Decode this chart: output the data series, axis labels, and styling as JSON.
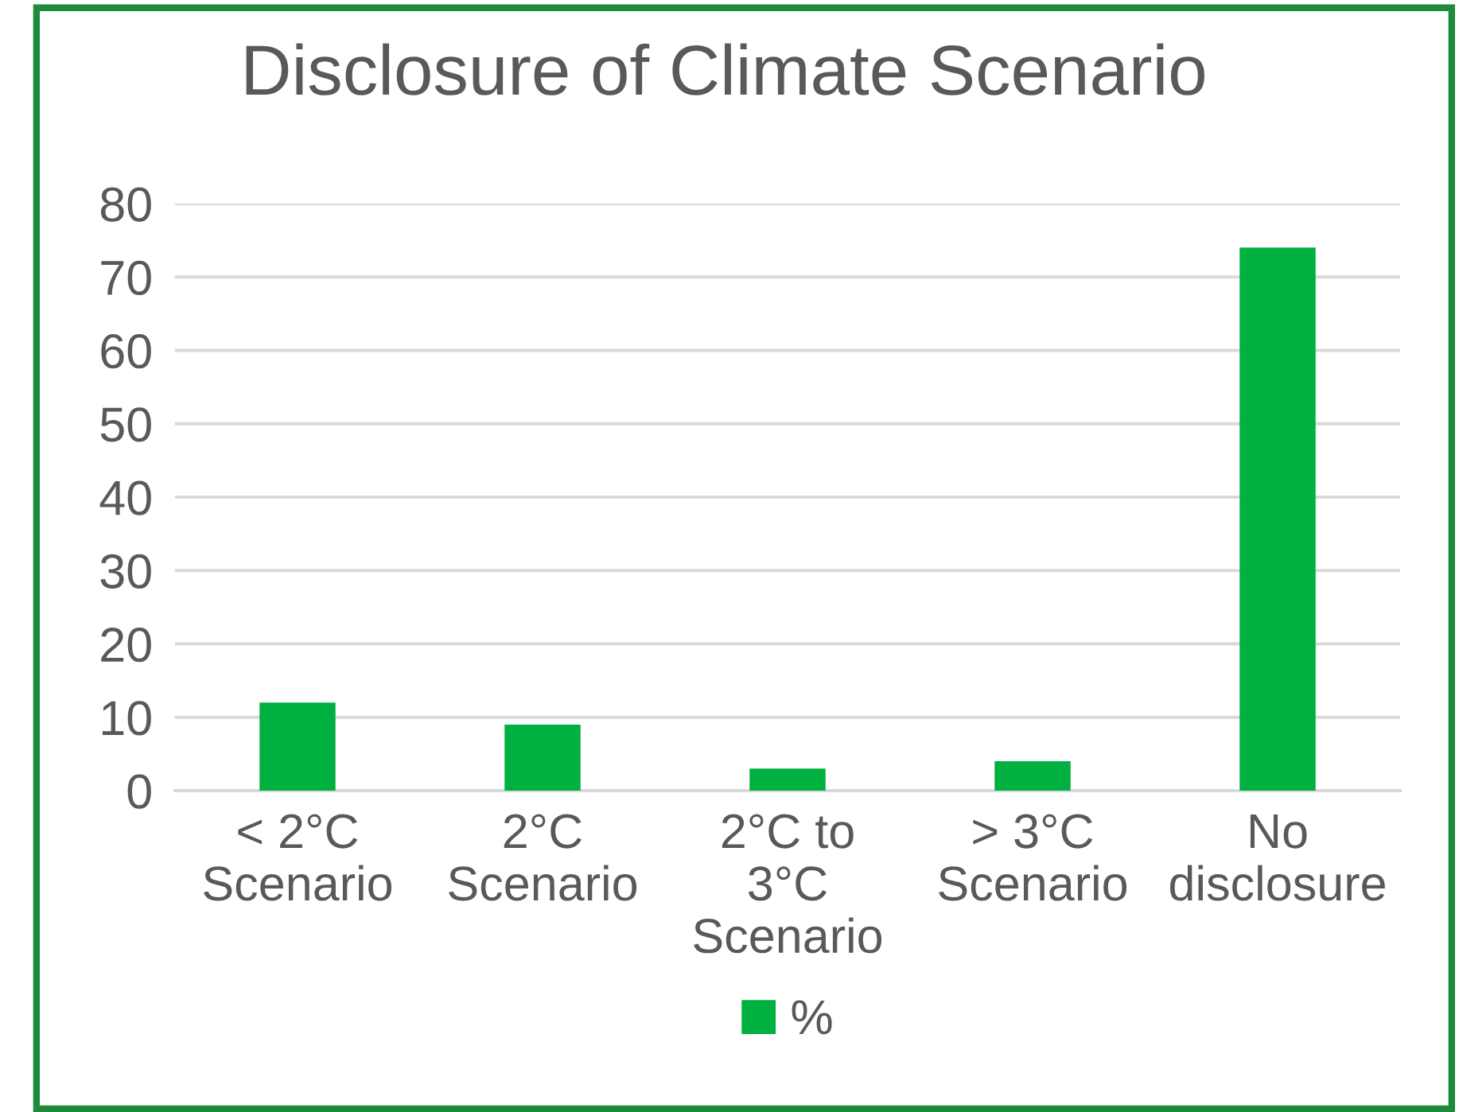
{
  "chart_data": {
    "type": "bar",
    "title": "Disclosure of Climate Scenario",
    "categories": [
      "< 2°C\nScenario",
      "2°C\nScenario",
      "2°C to\n3°C\nScenario",
      "> 3°C\nScenario",
      "No\ndisclosure"
    ],
    "series": [
      {
        "name": "%",
        "color": "#00b040",
        "values": [
          12,
          9,
          3,
          4,
          74
        ]
      }
    ],
    "ylim": [
      0,
      80
    ],
    "yticks": [
      0,
      10,
      20,
      30,
      40,
      50,
      60,
      70,
      80
    ],
    "grid": "y",
    "legend": "bottom"
  }
}
